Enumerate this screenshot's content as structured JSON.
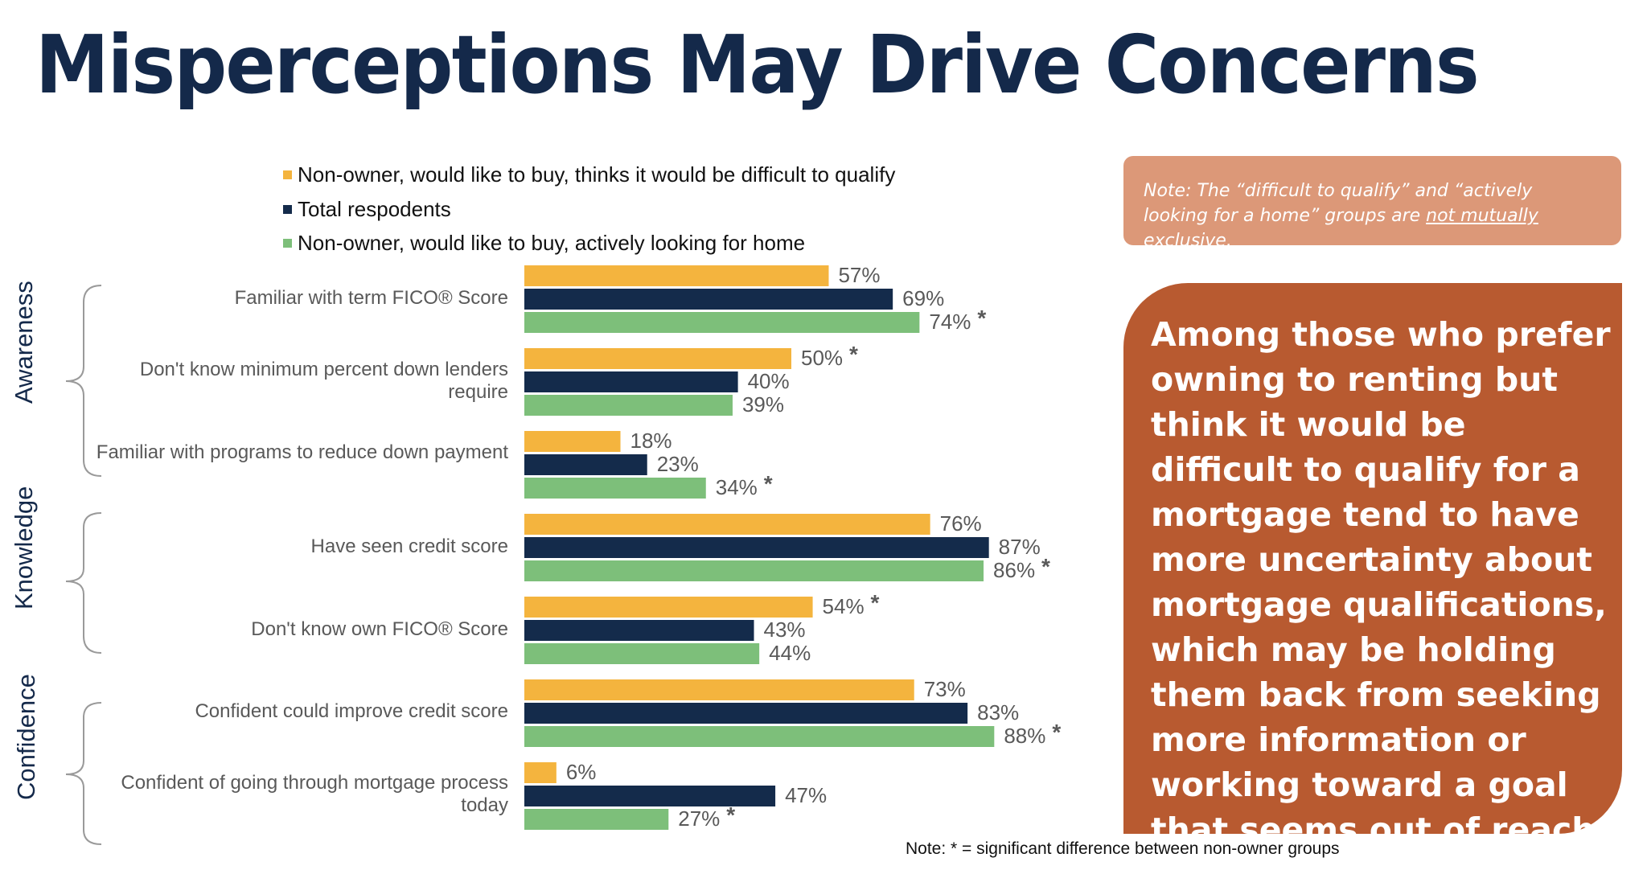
{
  "title": "Misperceptions May Drive Concerns",
  "legend": [
    {
      "label": "Non-owner, would like to buy, thinks it would be difficult to qualify",
      "color": "#f4b43e"
    },
    {
      "label": "Total respodents",
      "color": "#142b4b"
    },
    {
      "label": "Non-owner, would like to buy, actively looking for home",
      "color": "#7dbf7a"
    }
  ],
  "groups": [
    "Awareness",
    "Knowledge",
    "Confidence"
  ],
  "note_box": {
    "prefix": "Note: The “difficult to qualify” and “actively looking for a home” groups are ",
    "underlined": "not mutually exclusive",
    "suffix": "."
  },
  "callout": "Among those who prefer owning to renting but think it would be difficult to qualify for a mortgage tend to have more uncertainty about mortgage qualifications, which may be holding them back from seeking more information or working toward a goal that seems out of reach.",
  "footnote": "Note: * = significant difference between non-owner groups",
  "chart_data": {
    "type": "bar",
    "orientation": "horizontal",
    "categories": [
      "Familiar with term FICO® Score",
      "Don't know minimum percent down lenders require",
      "Familiar with programs to reduce down payment",
      "Have seen credit score",
      "Don't know own FICO® Score",
      "Confident could improve credit score",
      "Confident of going through mortgage process today"
    ],
    "category_groups": [
      "Awareness",
      "Awareness",
      "Awareness",
      "Knowledge",
      "Knowledge",
      "Confidence",
      "Confidence"
    ],
    "series": [
      {
        "name": "Non-owner, would like to buy, thinks it would be difficult to qualify",
        "color": "#f4b43e",
        "values": [
          57,
          50,
          18,
          76,
          54,
          73,
          6
        ],
        "labels": [
          "57%",
          "50%",
          "18%",
          "76%",
          "54%",
          "73%",
          "6%"
        ],
        "significant": [
          false,
          true,
          false,
          false,
          true,
          false,
          false
        ]
      },
      {
        "name": "Total respodents",
        "color": "#142b4b",
        "values": [
          69,
          40,
          23,
          87,
          43,
          83,
          47
        ],
        "labels": [
          "69%",
          "40%",
          "23%",
          "87%",
          "43%",
          "83%",
          "47%"
        ],
        "significant": [
          false,
          false,
          false,
          false,
          false,
          false,
          false
        ]
      },
      {
        "name": "Non-owner, would like to buy, actively looking for home",
        "color": "#7dbf7a",
        "values": [
          74,
          39,
          34,
          86,
          44,
          88,
          27
        ],
        "labels": [
          "74%",
          "39%",
          "34%",
          "86%",
          "44%",
          "88%",
          "27%"
        ],
        "significant": [
          true,
          false,
          true,
          true,
          false,
          true,
          true
        ]
      }
    ],
    "significance_marker": "*",
    "unit": "%",
    "xlim": [
      0,
      100
    ]
  }
}
